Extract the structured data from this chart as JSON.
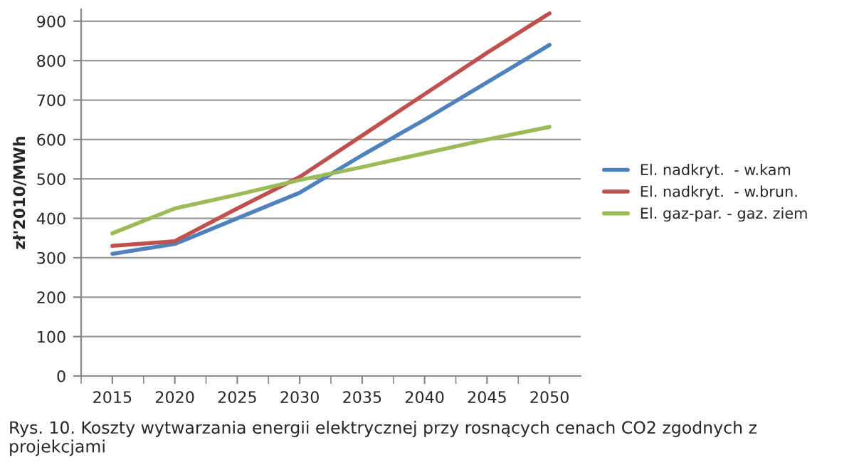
{
  "chart_data": {
    "type": "line",
    "ylabel": "zł'2010/MWh",
    "categories": [
      "2015",
      "2020",
      "2025",
      "2030",
      "2035",
      "2040",
      "2045",
      "2050"
    ],
    "series": [
      {
        "name": "El. nadkryt.  - w.kam",
        "color": "#4f81bd",
        "values": [
          310,
          335,
          400,
          465,
          560,
          650,
          745,
          840
        ]
      },
      {
        "name": "El. nadkryt.  - w.brun.",
        "color": "#c0504d",
        "values": [
          330,
          342,
          425,
          505,
          610,
          715,
          820,
          920
        ]
      },
      {
        "name": "El. gaz-par. - gaz. ziem",
        "color": "#9bbb59",
        "values": [
          362,
          425,
          460,
          497,
          530,
          565,
          600,
          632
        ]
      }
    ],
    "ylim": [
      0,
      930
    ],
    "yticks": [
      0,
      100,
      200,
      300,
      400,
      500,
      600,
      700,
      800,
      900
    ],
    "grid": "y",
    "legend": "right",
    "annotations": [
      "Rys. 10. Koszty wytwarzania energii elektrycznej przy rosnących cenach CO2 zgodnych z projekcjami"
    ]
  }
}
